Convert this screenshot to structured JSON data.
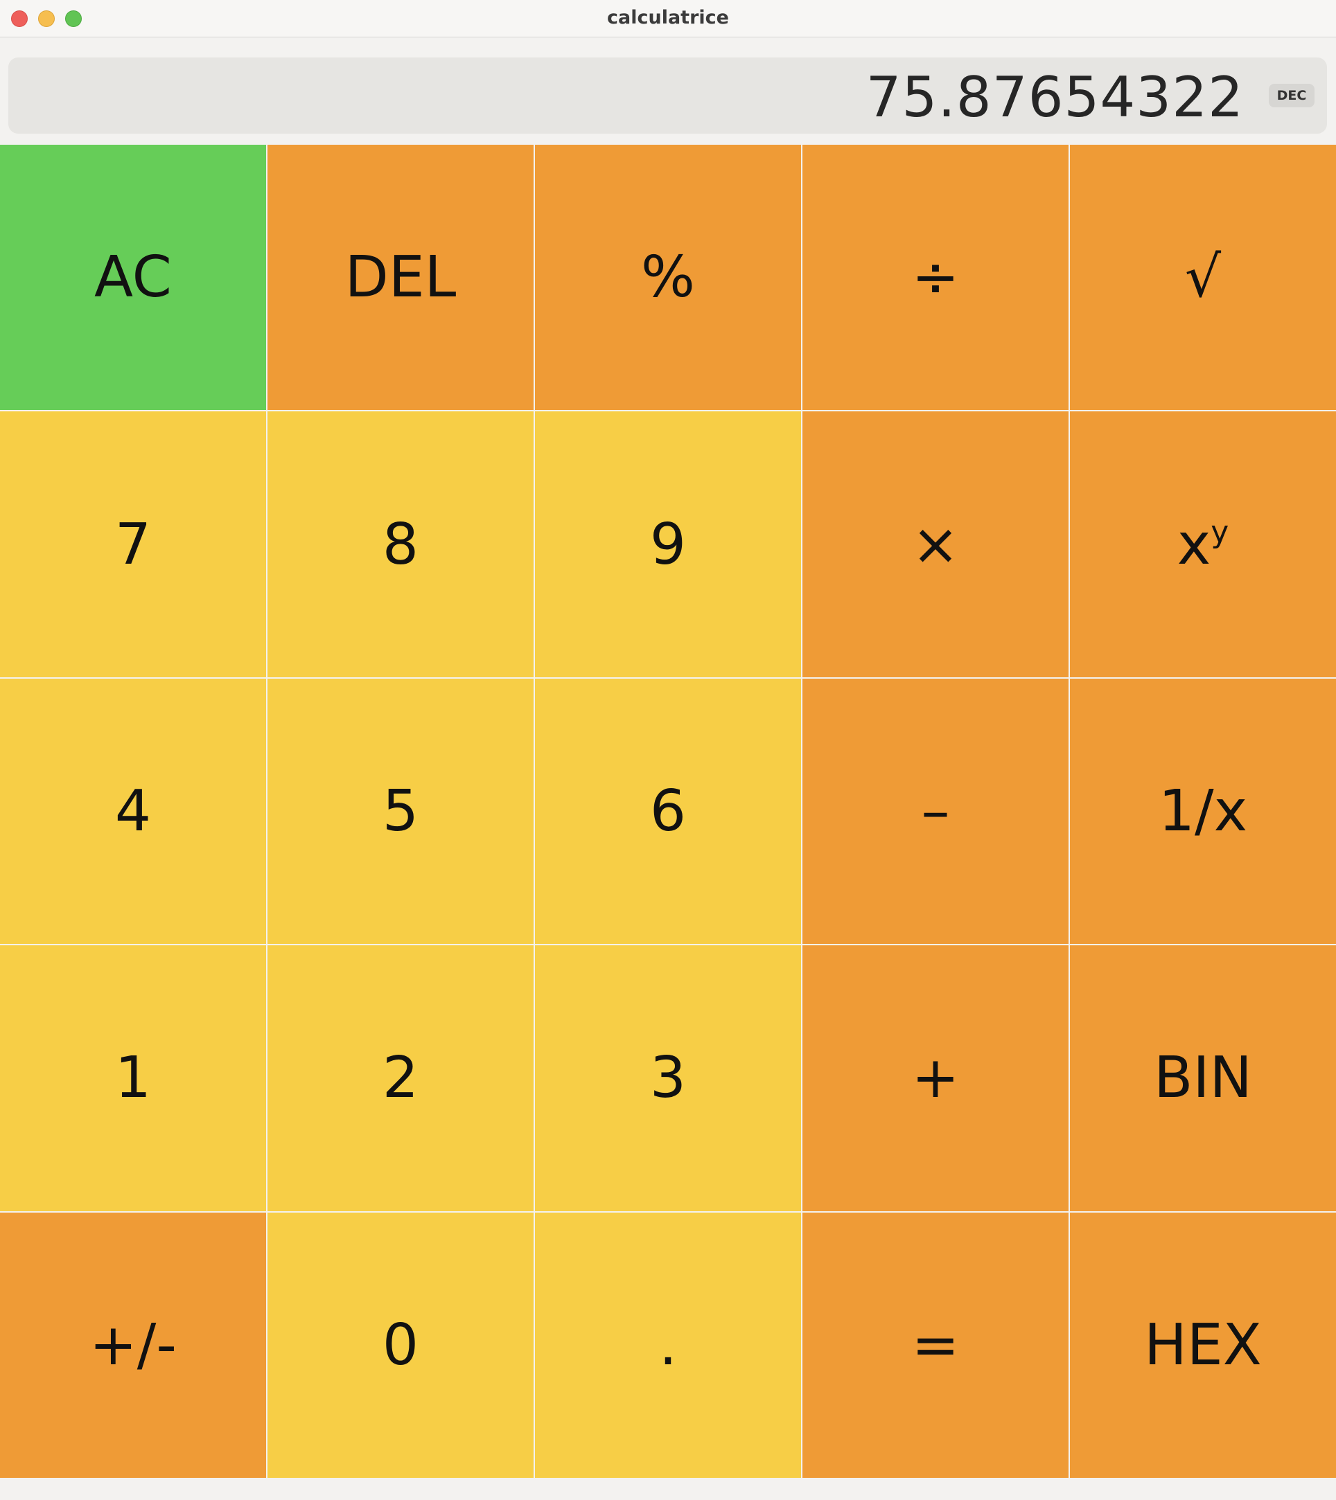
{
  "window": {
    "title": "calculatrice"
  },
  "display": {
    "value": "75.87654322",
    "mode": "DEC"
  },
  "colors": {
    "green": "#66cd58",
    "orange": "#ef9b36",
    "yellow": "#f7ce46"
  },
  "keys": {
    "ac": "AC",
    "del": "DEL",
    "percent": "%",
    "divide": "÷",
    "sqrt": "√",
    "seven": "7",
    "eight": "8",
    "nine": "9",
    "multiply": "×",
    "power_base": "x",
    "power_exp": "y",
    "four": "4",
    "five": "5",
    "six": "6",
    "minus": "–",
    "reciprocal": "1/x",
    "one": "1",
    "two": "2",
    "three": "3",
    "plus": "+",
    "bin": "BIN",
    "negate": "+/-",
    "zero": "0",
    "dot": ".",
    "equals": "=",
    "hex": "HEX"
  }
}
